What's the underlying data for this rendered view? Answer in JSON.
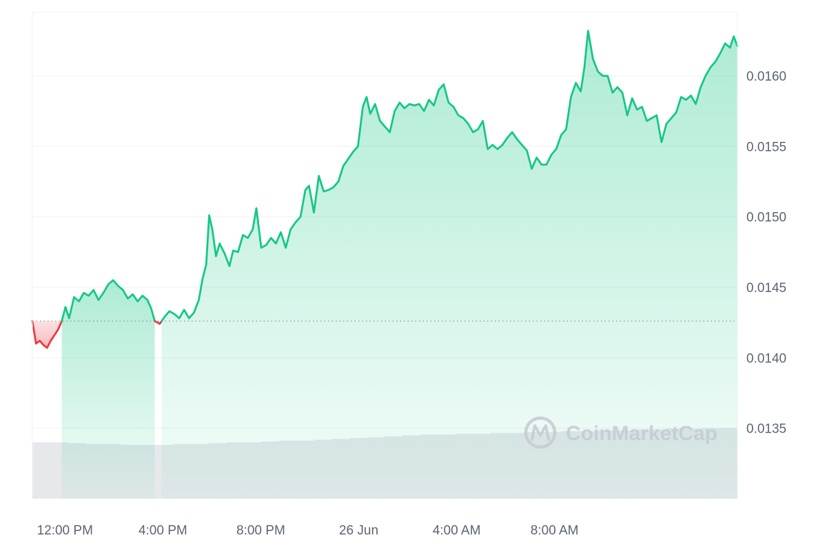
{
  "chart_data": {
    "type": "area",
    "title": "",
    "xlabel": "",
    "ylabel": "",
    "baseline": 0.01426,
    "ylim": [
      0.013,
      0.01645
    ],
    "y_ticks": [
      {
        "value": 0.016,
        "label": "0.0160"
      },
      {
        "value": 0.0155,
        "label": "0.0155"
      },
      {
        "value": 0.015,
        "label": "0.0150"
      },
      {
        "value": 0.0145,
        "label": "0.0145"
      },
      {
        "value": 0.014,
        "label": "0.0140"
      },
      {
        "value": 0.0135,
        "label": "0.0135"
      }
    ],
    "x_ticks": [
      {
        "hours": 1.33,
        "label": "12:00 PM"
      },
      {
        "hours": 5.33,
        "label": "4:00 PM"
      },
      {
        "hours": 9.33,
        "label": "8:00 PM"
      },
      {
        "hours": 13.33,
        "label": "26 Jun"
      },
      {
        "hours": 17.33,
        "label": "4:00 AM"
      },
      {
        "hours": 21.33,
        "label": "8:00 AM"
      }
    ],
    "x_range_hours": [
      0,
      24
    ],
    "series": [
      {
        "price": [
          [
            0.0,
            0.01426
          ],
          [
            0.15,
            0.0141
          ],
          [
            0.3,
            0.01412
          ],
          [
            0.45,
            0.01409
          ],
          [
            0.6,
            0.01407
          ],
          [
            0.75,
            0.01412
          ],
          [
            0.9,
            0.01416
          ],
          [
            1.05,
            0.0142
          ],
          [
            1.2,
            0.01426
          ],
          [
            1.35,
            0.01436
          ],
          [
            1.5,
            0.01428
          ],
          [
            1.7,
            0.01443
          ],
          [
            1.9,
            0.0144
          ],
          [
            2.1,
            0.01446
          ],
          [
            2.3,
            0.01444
          ],
          [
            2.5,
            0.01448
          ],
          [
            2.7,
            0.01441
          ],
          [
            2.9,
            0.01446
          ],
          [
            3.1,
            0.01452
          ],
          [
            3.3,
            0.01455
          ],
          [
            3.5,
            0.01451
          ],
          [
            3.7,
            0.01448
          ],
          [
            3.9,
            0.01442
          ],
          [
            4.1,
            0.01445
          ],
          [
            4.3,
            0.0144
          ],
          [
            4.5,
            0.01444
          ],
          [
            4.7,
            0.01441
          ],
          [
            4.85,
            0.01435
          ],
          [
            5.0,
            0.01426
          ],
          [
            5.2,
            0.01424
          ],
          [
            5.4,
            0.01429
          ],
          [
            5.6,
            0.01433
          ],
          [
            5.8,
            0.01431
          ],
          [
            6.0,
            0.01428
          ],
          [
            6.2,
            0.01434
          ],
          [
            6.4,
            0.01428
          ],
          [
            6.6,
            0.01432
          ],
          [
            6.8,
            0.01441
          ],
          [
            6.95,
            0.01456
          ],
          [
            7.1,
            0.01466
          ],
          [
            7.22,
            0.01501
          ],
          [
            7.35,
            0.01491
          ],
          [
            7.5,
            0.01472
          ],
          [
            7.65,
            0.01481
          ],
          [
            7.85,
            0.01474
          ],
          [
            8.05,
            0.01465
          ],
          [
            8.2,
            0.01476
          ],
          [
            8.4,
            0.01475
          ],
          [
            8.6,
            0.01487
          ],
          [
            8.8,
            0.01485
          ],
          [
            9.0,
            0.01491
          ],
          [
            9.15,
            0.01506
          ],
          [
            9.35,
            0.01478
          ],
          [
            9.55,
            0.0148
          ],
          [
            9.75,
            0.01485
          ],
          [
            9.95,
            0.01481
          ],
          [
            10.15,
            0.01489
          ],
          [
            10.35,
            0.01478
          ],
          [
            10.55,
            0.01491
          ],
          [
            10.75,
            0.01496
          ],
          [
            10.95,
            0.015
          ],
          [
            11.15,
            0.01519
          ],
          [
            11.3,
            0.01522
          ],
          [
            11.5,
            0.01503
          ],
          [
            11.7,
            0.01529
          ],
          [
            11.9,
            0.01518
          ],
          [
            12.1,
            0.01519
          ],
          [
            12.3,
            0.01521
          ],
          [
            12.5,
            0.01525
          ],
          [
            12.7,
            0.01536
          ],
          [
            12.9,
            0.01541
          ],
          [
            13.1,
            0.01546
          ],
          [
            13.3,
            0.0155
          ],
          [
            13.5,
            0.01578
          ],
          [
            13.65,
            0.01585
          ],
          [
            13.8,
            0.01573
          ],
          [
            14.0,
            0.0158
          ],
          [
            14.2,
            0.01568
          ],
          [
            14.4,
            0.01564
          ],
          [
            14.6,
            0.0156
          ],
          [
            14.8,
            0.01575
          ],
          [
            15.0,
            0.01581
          ],
          [
            15.2,
            0.01577
          ],
          [
            15.4,
            0.0158
          ],
          [
            15.6,
            0.01579
          ],
          [
            15.8,
            0.0158
          ],
          [
            16.0,
            0.01575
          ],
          [
            16.2,
            0.01583
          ],
          [
            16.4,
            0.01579
          ],
          [
            16.6,
            0.0159
          ],
          [
            16.8,
            0.01594
          ],
          [
            17.0,
            0.01581
          ],
          [
            17.2,
            0.01578
          ],
          [
            17.4,
            0.01572
          ],
          [
            17.6,
            0.0157
          ],
          [
            17.8,
            0.01566
          ],
          [
            18.0,
            0.0156
          ],
          [
            18.2,
            0.01562
          ],
          [
            18.4,
            0.01568
          ],
          [
            18.6,
            0.01548
          ],
          [
            18.8,
            0.01551
          ],
          [
            19.0,
            0.01548
          ],
          [
            19.2,
            0.01551
          ],
          [
            19.4,
            0.01556
          ],
          [
            19.6,
            0.0156
          ],
          [
            19.8,
            0.01555
          ],
          [
            20.0,
            0.01551
          ],
          [
            20.2,
            0.01547
          ],
          [
            20.4,
            0.01534
          ],
          [
            20.6,
            0.01542
          ],
          [
            20.8,
            0.01537
          ],
          [
            21.0,
            0.01537
          ],
          [
            21.2,
            0.01544
          ],
          [
            21.4,
            0.01548
          ],
          [
            21.6,
            0.01558
          ],
          [
            21.8,
            0.01562
          ],
          [
            22.0,
            0.01585
          ],
          [
            22.2,
            0.01595
          ],
          [
            22.4,
            0.01589
          ],
          [
            22.55,
            0.01606
          ],
          [
            22.7,
            0.01632
          ],
          [
            22.9,
            0.01612
          ],
          [
            23.1,
            0.01603
          ],
          [
            23.3,
            0.016
          ],
          [
            23.5,
            0.016
          ],
          [
            23.7,
            0.01588
          ],
          [
            23.9,
            0.01592
          ],
          [
            24.1,
            0.01588
          ],
          [
            24.3,
            0.01572
          ],
          [
            24.5,
            0.01584
          ],
          [
            24.7,
            0.01576
          ],
          [
            24.9,
            0.01578
          ],
          [
            25.1,
            0.01568
          ],
          [
            25.3,
            0.0157
          ],
          [
            25.5,
            0.01572
          ],
          [
            25.7,
            0.01553
          ],
          [
            25.9,
            0.01566
          ],
          [
            26.1,
            0.0157
          ],
          [
            26.3,
            0.01574
          ],
          [
            26.5,
            0.01585
          ],
          [
            26.7,
            0.01583
          ],
          [
            26.9,
            0.01586
          ],
          [
            27.1,
            0.0158
          ],
          [
            27.3,
            0.01592
          ],
          [
            27.5,
            0.016
          ],
          [
            27.7,
            0.01606
          ],
          [
            27.9,
            0.0161
          ],
          [
            28.1,
            0.01616
          ],
          [
            28.3,
            0.01623
          ],
          [
            28.5,
            0.0162
          ],
          [
            28.65,
            0.01628
          ],
          [
            28.8,
            0.01621
          ]
        ],
        "volume_relative": [
          0.66,
          0.66,
          0.65,
          0.64,
          0.64,
          0.63,
          0.63,
          0.63,
          0.64,
          0.64,
          0.65,
          0.66,
          0.66,
          0.67,
          0.68,
          0.68,
          0.69,
          0.7,
          0.71,
          0.72,
          0.73,
          0.74,
          0.75,
          0.75,
          0.76,
          0.76,
          0.77,
          0.77,
          0.78,
          0.78,
          0.79,
          0.79,
          0.8,
          0.8,
          0.81,
          0.81,
          0.82,
          0.82,
          0.83,
          0.83
        ]
      }
    ],
    "colors": {
      "up_line": "#16c784",
      "down_line": "#ea3943",
      "up_fill": "#16c784",
      "down_fill": "#ea3943",
      "baseline": "#8a8f98",
      "grid": "#eef0f3",
      "volume": "#e6e8ec"
    },
    "grid": true
  },
  "watermark": {
    "text": "CoinMarketCap",
    "icon": "coinmarketcap-logo-icon"
  }
}
